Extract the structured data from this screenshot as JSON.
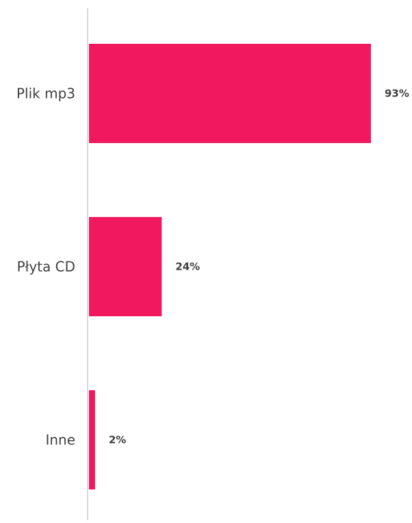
{
  "chart_data": {
    "type": "bar",
    "orientation": "horizontal",
    "categories": [
      "Plik mp3",
      "Płyta CD",
      "Inne"
    ],
    "values": [
      93,
      24,
      2
    ],
    "value_labels": [
      "93%",
      "24%",
      "2%"
    ],
    "unit": "%",
    "xlim": [
      0,
      100
    ],
    "grid": false,
    "legend": "none",
    "bar_color": "#f2185f",
    "axis_color": "#d9d9d9",
    "label_color": "#404040"
  }
}
